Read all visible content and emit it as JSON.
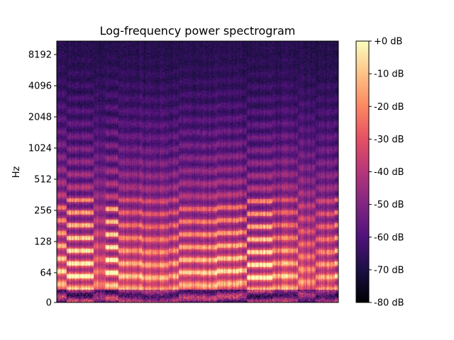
{
  "chart_data": {
    "type": "heatmap",
    "title": "Log-frequency power spectrogram",
    "xlabel": "",
    "ylabel": "Hz",
    "y_scale": "log-frequency",
    "y_ticks": [
      "0",
      "64",
      "128",
      "256",
      "512",
      "1024",
      "2048",
      "4096",
      "8192"
    ],
    "x_ticks": [],
    "colorbar": {
      "colormap": "magma",
      "vmin": -80,
      "vmax": 0,
      "ticks": [
        "+0 dB",
        "-10 dB",
        "-20 dB",
        "-30 dB",
        "-40 dB",
        "-50 dB",
        "-60 dB",
        "-70 dB",
        "-80 dB"
      ]
    },
    "colors": {
      "magma": [
        "#000004",
        "#1c1044",
        "#4f127b",
        "#812581",
        "#b5367a",
        "#e55064",
        "#fb8761",
        "#fec287",
        "#fcfdbf"
      ]
    }
  }
}
